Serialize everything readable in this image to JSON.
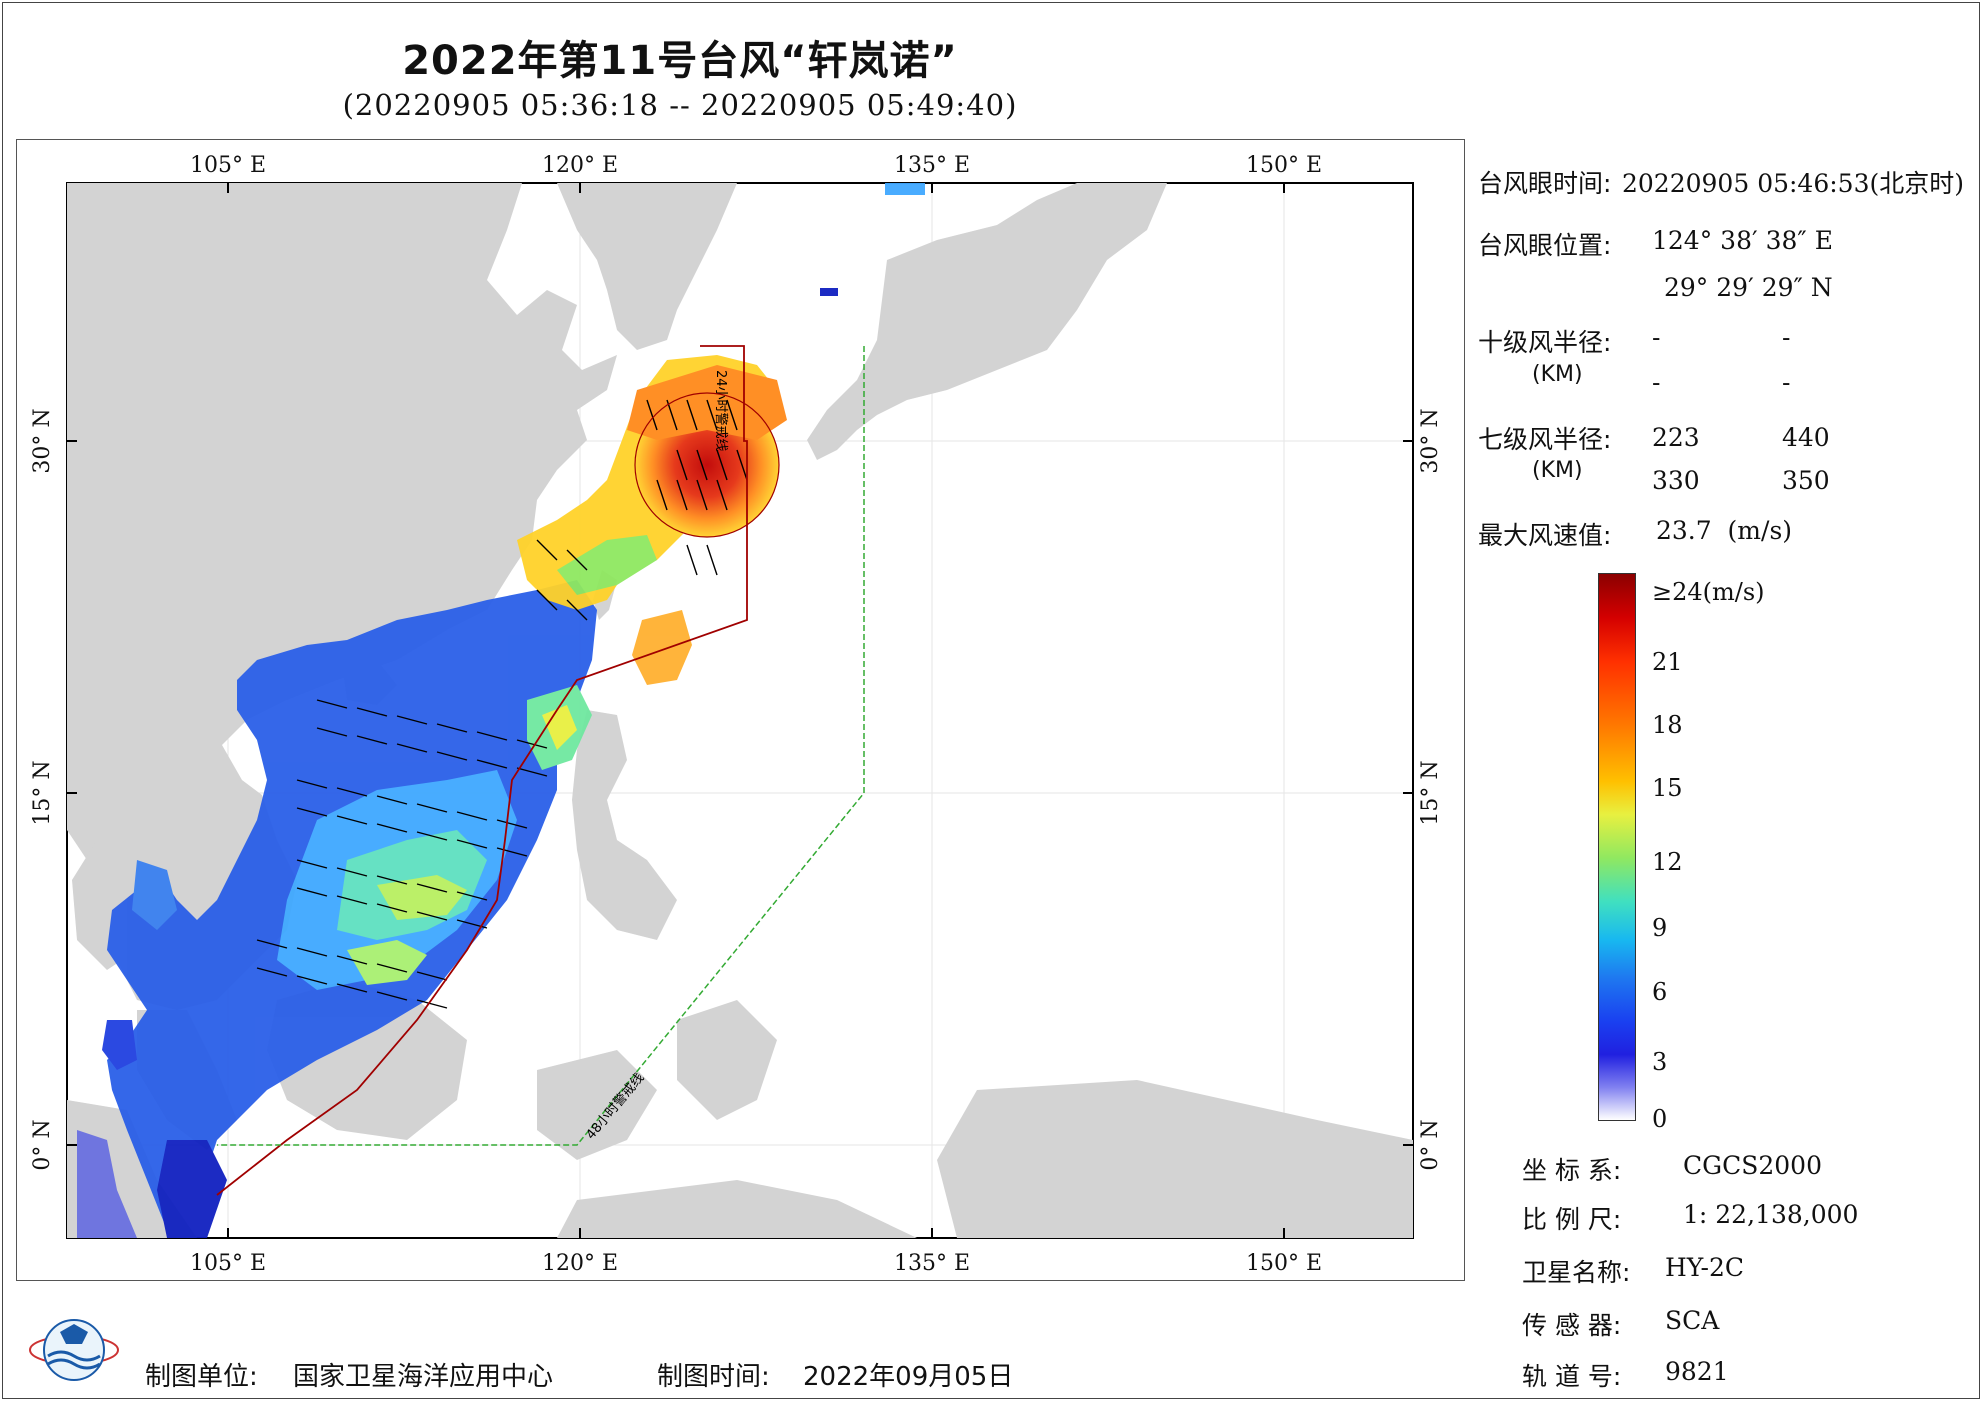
{
  "title": "2022年第11号台风“轩岚诺”",
  "subtitle": "(20220905 05:36:18 -- 20220905 05:49:40)",
  "map": {
    "lon_ticks_top": [
      "105° E",
      "120° E",
      "135° E",
      "150° E"
    ],
    "lon_ticks_bottom": [
      "105° E",
      "120° E",
      "135° E",
      "150° E"
    ],
    "lat_ticks_left": [
      "30° N",
      "15° N",
      "0° N"
    ],
    "lat_ticks_right": [
      "30° N",
      "15° N",
      "0° N"
    ],
    "warning_24h": "24小时警戒线",
    "warning_48h": "48小时警戒线",
    "colors": {
      "land": "#d3d3d3",
      "warning24": "#a00000",
      "warning48": "#33aa33",
      "grid": "#e6e6e6"
    }
  },
  "info": {
    "eye_time_label": "台风眼时间:",
    "eye_time_value": "20220905 05:46:53(北京时)",
    "eye_pos_label": "台风眼位置:",
    "eye_lon": "124° 38′ 38″ E",
    "eye_lat": "29° 29′ 29″ N",
    "r10_label": "十级风半径:",
    "r10_unit": "(KM)",
    "r10_values": [
      "-",
      "-",
      "-",
      "-"
    ],
    "r7_label": "七级风半径:",
    "r7_unit": "(KM)",
    "r7_values": [
      "223",
      "440",
      "330",
      "350"
    ],
    "max_wind_label": "最大风速值:",
    "max_wind_value": "23.7  (m/s)"
  },
  "colorbar": {
    "labels": [
      "≥24(m/s)",
      "21",
      "18",
      "15",
      "12",
      "9",
      "6",
      "3",
      "0"
    ]
  },
  "meta": {
    "crs_label": "坐 标 系:",
    "crs_value": "CGCS2000",
    "scale_label": "比 例 尺:",
    "scale_value": "1: 22,138,000",
    "sat_label": "卫星名称:",
    "sat_value": "HY-2C",
    "sensor_label": "传 感 器:",
    "sensor_value": "SCA",
    "orbit_label": "轨 道 号:",
    "orbit_value": "9821"
  },
  "footer": {
    "unit_label": "制图单位:",
    "unit_value": "国家卫星海洋应用中心",
    "date_label": "制图时间:",
    "date_value": "2022年09月05日"
  }
}
